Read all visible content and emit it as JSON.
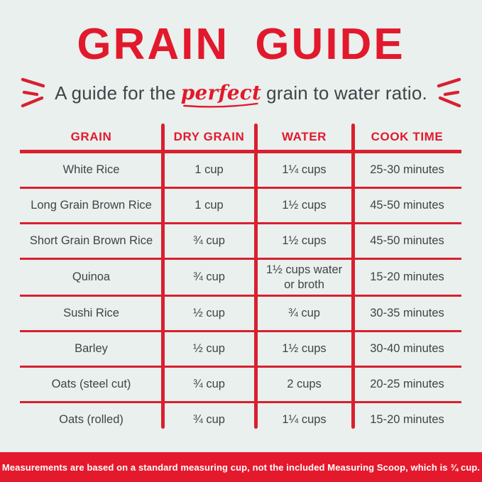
{
  "colors": {
    "background": "#eaf0ed",
    "accent_red": "#e2192d",
    "line_red": "#d8202f",
    "footer_red": "#e4192c",
    "text_dark": "#3e4549",
    "footer_text": "#ffffff"
  },
  "header": {
    "title": "GRAIN GUIDE",
    "subtitle_prefix": "A guide for the",
    "subtitle_highlight": "perfect",
    "subtitle_suffix": "grain to water ratio."
  },
  "table": {
    "columns": [
      "GRAIN",
      "DRY GRAIN",
      "WATER",
      "COOK TIME"
    ],
    "fields": [
      "grain",
      "dry_grain",
      "water",
      "cook_time"
    ],
    "rows": [
      {
        "grain": "White Rice",
        "dry_grain": "1 cup",
        "water": "1¼ cups",
        "cook_time": "25-30 minutes"
      },
      {
        "grain": "Long Grain Brown Rice",
        "dry_grain": "1 cup",
        "water": "1½ cups",
        "cook_time": "45-50 minutes"
      },
      {
        "grain": "Short Grain Brown Rice",
        "dry_grain": "¾ cup",
        "water": "1½ cups",
        "cook_time": "45-50 minutes"
      },
      {
        "grain": "Quinoa",
        "dry_grain": "¾ cup",
        "water": "1½ cups water or broth",
        "cook_time": "15-20 minutes"
      },
      {
        "grain": "Sushi Rice",
        "dry_grain": "½ cup",
        "water": "¾ cup",
        "cook_time": "30-35 minutes"
      },
      {
        "grain": "Barley",
        "dry_grain": "½ cup",
        "water": "1½ cups",
        "cook_time": "30-40 minutes"
      },
      {
        "grain": "Oats (steel cut)",
        "dry_grain": "¾ cup",
        "water": "2 cups",
        "cook_time": "20-25 minutes"
      },
      {
        "grain": "Oats (rolled)",
        "dry_grain": "¾ cup",
        "water": "1¼ cups",
        "cook_time": "15-20 minutes"
      }
    ]
  },
  "footer": {
    "note": "Measurements are based on a standard measuring cup, not the included Measuring Scoop, which is ¾ cup."
  }
}
